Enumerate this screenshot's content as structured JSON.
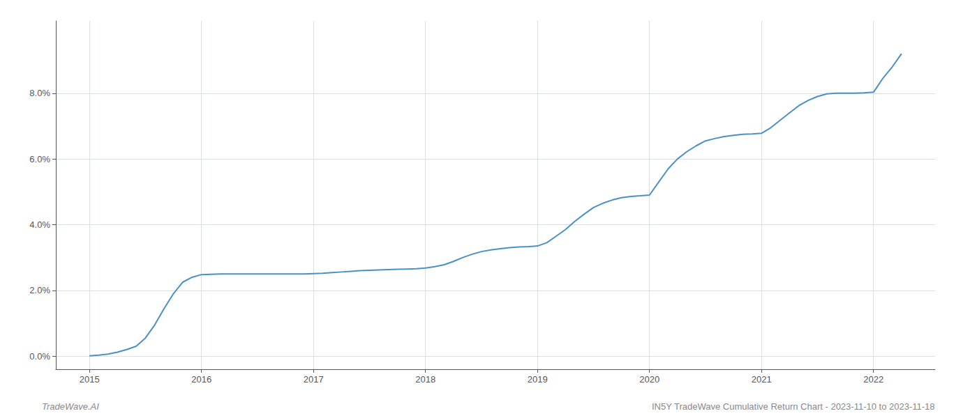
{
  "chart_data": {
    "type": "line",
    "x": [
      2015.0,
      2015.083,
      2015.167,
      2015.25,
      2015.333,
      2015.417,
      2015.5,
      2015.583,
      2015.667,
      2015.75,
      2015.833,
      2015.917,
      2016.0,
      2016.083,
      2016.167,
      2016.25,
      2016.333,
      2016.417,
      2016.5,
      2016.583,
      2016.667,
      2016.75,
      2016.833,
      2016.917,
      2017.0,
      2017.083,
      2017.167,
      2017.25,
      2017.333,
      2017.417,
      2017.5,
      2017.583,
      2017.667,
      2017.75,
      2017.833,
      2017.917,
      2018.0,
      2018.083,
      2018.167,
      2018.25,
      2018.333,
      2018.417,
      2018.5,
      2018.583,
      2018.667,
      2018.75,
      2018.833,
      2018.917,
      2019.0,
      2019.083,
      2019.167,
      2019.25,
      2019.333,
      2019.417,
      2019.5,
      2019.583,
      2019.667,
      2019.75,
      2019.833,
      2019.917,
      2020.0,
      2020.083,
      2020.167,
      2020.25,
      2020.333,
      2020.417,
      2020.5,
      2020.583,
      2020.667,
      2020.75,
      2020.833,
      2020.917,
      2021.0,
      2021.083,
      2021.167,
      2021.25,
      2021.333,
      2021.417,
      2021.5,
      2021.583,
      2021.667,
      2021.75,
      2021.833,
      2021.917,
      2022.0,
      2022.083,
      2022.167,
      2022.25
    ],
    "values": [
      0.0001,
      0.0003,
      0.0006,
      0.0012,
      0.002,
      0.003,
      0.0055,
      0.0095,
      0.0145,
      0.019,
      0.0225,
      0.024,
      0.0248,
      0.0249,
      0.025,
      0.025,
      0.025,
      0.025,
      0.025,
      0.025,
      0.025,
      0.025,
      0.025,
      0.025,
      0.0251,
      0.0252,
      0.0254,
      0.0256,
      0.0258,
      0.026,
      0.0261,
      0.0262,
      0.0263,
      0.0264,
      0.0265,
      0.0266,
      0.0268,
      0.0272,
      0.0278,
      0.0288,
      0.03,
      0.031,
      0.0318,
      0.0323,
      0.0327,
      0.033,
      0.0332,
      0.0333,
      0.0335,
      0.0345,
      0.0365,
      0.0385,
      0.041,
      0.0432,
      0.0452,
      0.0465,
      0.0475,
      0.0482,
      0.0486,
      0.0488,
      0.049,
      0.053,
      0.057,
      0.06,
      0.0622,
      0.064,
      0.0655,
      0.0662,
      0.0668,
      0.0672,
      0.0675,
      0.0676,
      0.0678,
      0.0695,
      0.0718,
      0.074,
      0.0762,
      0.0778,
      0.079,
      0.0798,
      0.08,
      0.08,
      0.08,
      0.0801,
      0.0803,
      0.0845,
      0.088,
      0.092
    ],
    "color": "#4a90c4",
    "xlim": [
      2014.7,
      2022.55
    ],
    "xticks": [
      2015,
      2016,
      2017,
      2018,
      2019,
      2020,
      2021,
      2022
    ],
    "ylim": [
      -0.004,
      0.102
    ],
    "yticks": [
      {
        "value": 0.0,
        "label": "0.0%"
      },
      {
        "value": 0.02,
        "label": "2.0%"
      },
      {
        "value": 0.04,
        "label": "4.0%"
      },
      {
        "value": 0.06,
        "label": "6.0%"
      },
      {
        "value": 0.08,
        "label": "8.0%"
      }
    ],
    "grid": true,
    "annotations": [
      "TradeWave.AI",
      "IN5Y TradeWave Cumulative Return Chart - 2023-11-10 to 2023-11-18"
    ]
  }
}
